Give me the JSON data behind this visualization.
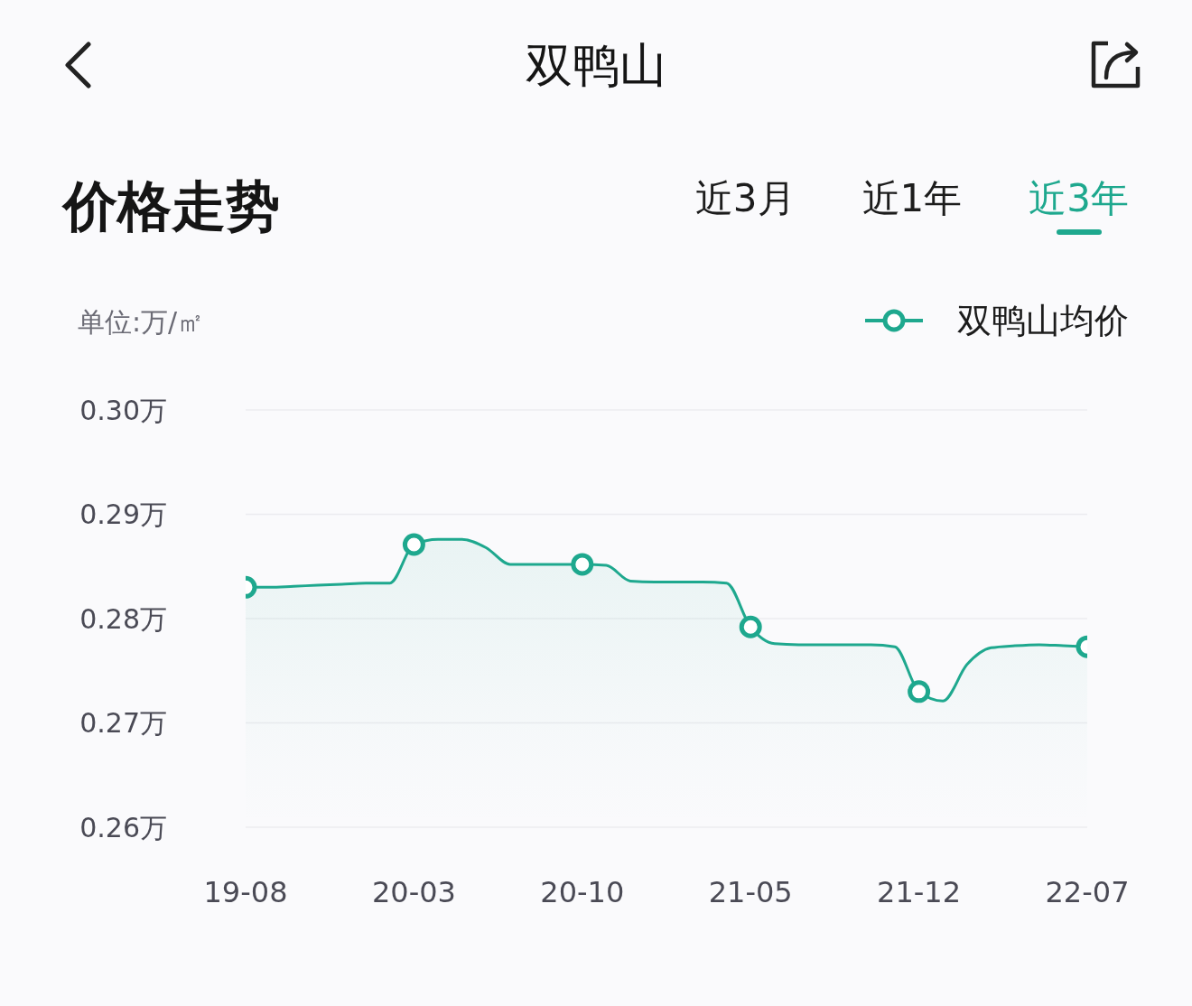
{
  "chart_data": {
    "type": "area",
    "title": "双鸭山",
    "subtitle": "价格走势",
    "ylabel": "单位:万/㎡",
    "annotations": [
      "近3月",
      "近1年",
      "近3年"
    ],
    "categories": [
      "19-08",
      null,
      null,
      null,
      null,
      null,
      null,
      "20-03",
      null,
      null,
      null,
      null,
      null,
      null,
      "20-10",
      null,
      null,
      null,
      null,
      null,
      null,
      "21-05",
      null,
      null,
      null,
      null,
      null,
      null,
      "21-12",
      null,
      null,
      null,
      null,
      null,
      null,
      "22-07"
    ],
    "ylim": [
      0.26,
      0.3
    ],
    "yticks": [
      {
        "value": 0.26,
        "label": "0.26万"
      },
      {
        "value": 0.27,
        "label": "0.27万"
      },
      {
        "value": 0.28,
        "label": "0.28万"
      },
      {
        "value": 0.29,
        "label": "0.29万"
      },
      {
        "value": 0.3,
        "label": "0.30万"
      }
    ],
    "grid": "y",
    "legend": "top right",
    "series": [
      {
        "color": "#1ea88e",
        "marker": "none",
        "values": [
          0.283,
          0.283,
          0.2831,
          0.2832,
          0.2833,
          0.2834,
          0.2834,
          0.2871,
          0.2876,
          0.2876,
          0.2868,
          0.2852,
          0.2852,
          0.2852,
          0.2852,
          0.2851,
          0.2836,
          0.2835,
          0.2835,
          0.2835,
          0.2834,
          0.2792,
          0.2776,
          0.2775,
          0.2775,
          0.2775,
          0.2775,
          0.2773,
          0.273,
          0.2721,
          0.2756,
          0.2772,
          0.2774,
          0.2775,
          0.2774,
          0.2773
        ]
      },
      {
        "type": "scatter",
        "name": "双鸭山均价",
        "color": "#1ea88e",
        "marker": "circle",
        "values": [
          0.283,
          null,
          null,
          null,
          null,
          null,
          null,
          0.2871,
          null,
          null,
          null,
          null,
          null,
          null,
          0.2852,
          null,
          null,
          null,
          null,
          null,
          null,
          0.2792,
          null,
          null,
          null,
          null,
          null,
          null,
          0.273,
          null,
          null,
          null,
          null,
          null,
          null,
          0.2773
        ]
      }
    ]
  }
}
